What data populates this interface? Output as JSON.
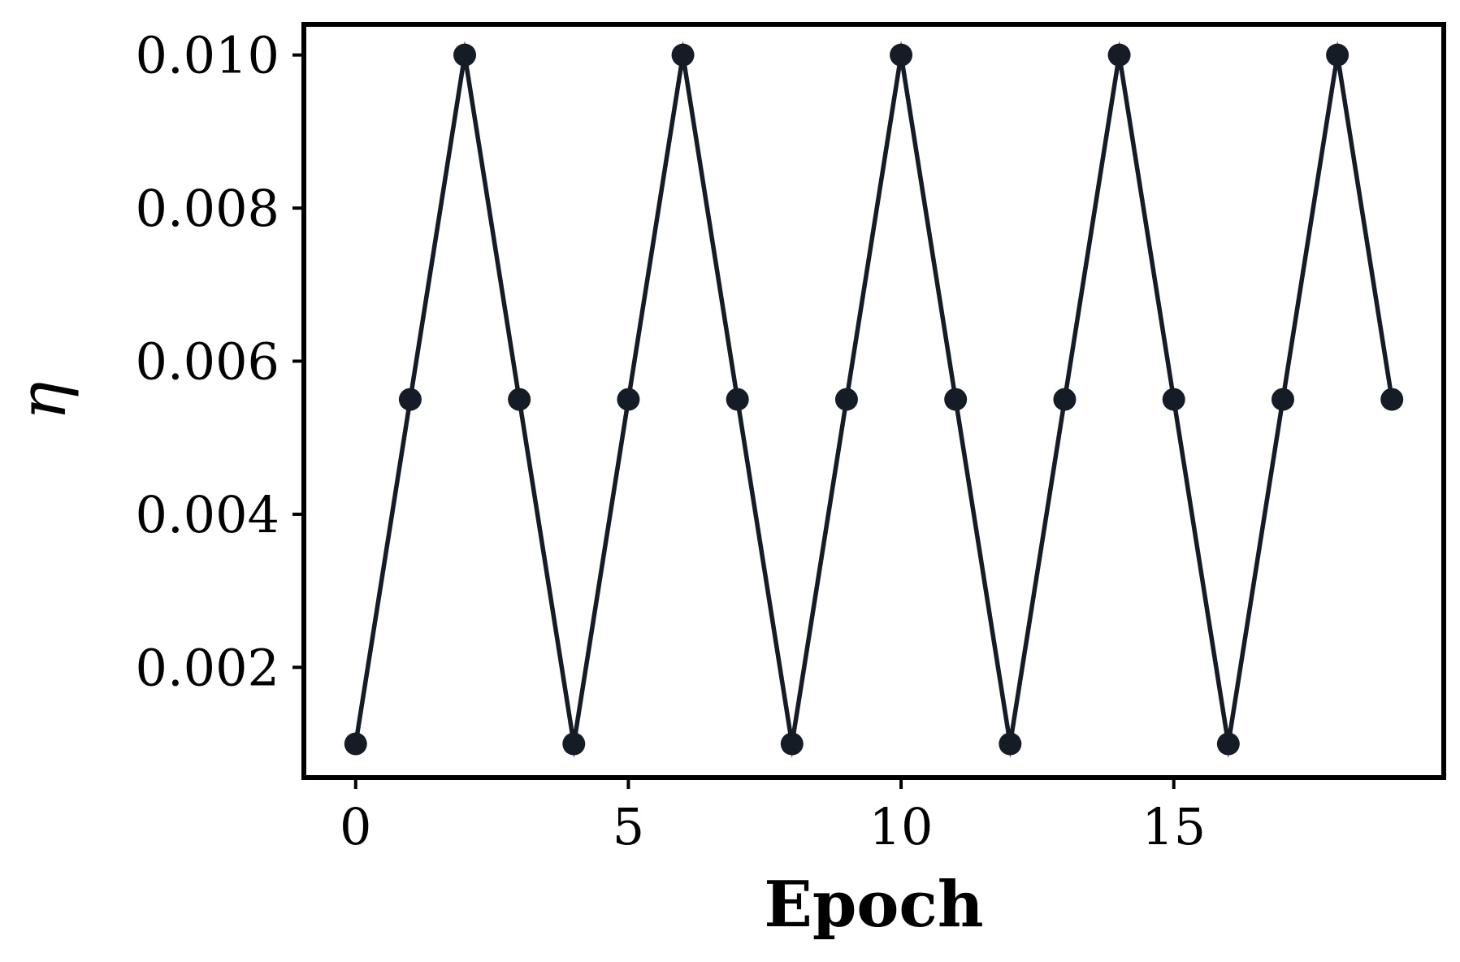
{
  "chart_data": {
    "type": "line",
    "title": "",
    "xlabel": "Epoch",
    "ylabel": "η",
    "xlim": [
      -0.95,
      19.95
    ],
    "ylim": [
      0.00056,
      0.0104
    ],
    "xticks": [
      0,
      5,
      10,
      15
    ],
    "xtick_labels": [
      "0",
      "5",
      "10",
      "15"
    ],
    "yticks": [
      0.002,
      0.004,
      0.006,
      0.008,
      0.01
    ],
    "ytick_labels": [
      "0.002",
      "0.004",
      "0.006",
      "0.008",
      "0.010"
    ],
    "grid": false,
    "legend": "none",
    "series": [
      {
        "x": [
          0,
          1,
          2,
          3,
          4,
          5,
          6,
          7,
          8,
          9,
          10,
          11,
          12,
          13,
          14,
          15,
          16,
          17,
          18,
          19
        ],
        "y": [
          0.001,
          0.0055,
          0.01,
          0.0055,
          0.001,
          0.0055,
          0.01,
          0.0055,
          0.001,
          0.0055,
          0.01,
          0.0055,
          0.001,
          0.0055,
          0.01,
          0.0055,
          0.001,
          0.0055,
          0.01,
          0.0055
        ],
        "color": "#151c26",
        "marker": "circle"
      }
    ]
  }
}
